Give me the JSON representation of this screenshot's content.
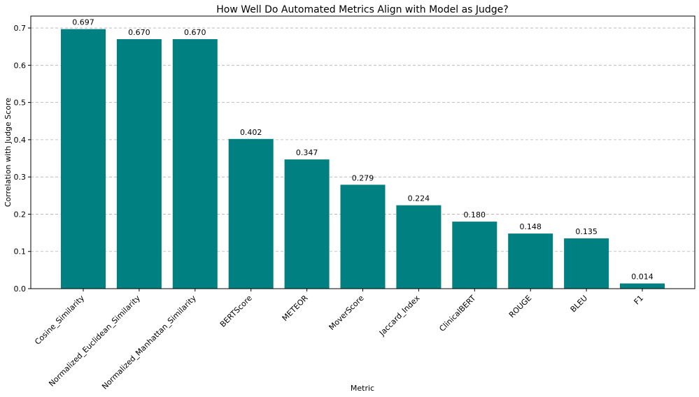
{
  "chart_data": {
    "type": "bar",
    "title": "How Well Do Automated Metrics Align with Model as Judge?",
    "xlabel": "Metric",
    "ylabel": "Correlation with Judge Score",
    "categories": [
      "Cosine_Similarity",
      "Normalized_Euclidean_Similarity",
      "Normalized_Manhattan_Similarity",
      "BERTScore",
      "METEOR",
      "MoverScore",
      "Jaccard_Index",
      "ClinicalBERT",
      "ROUGE",
      "BLEU",
      "F1"
    ],
    "values": [
      0.697,
      0.67,
      0.67,
      0.402,
      0.347,
      0.279,
      0.224,
      0.18,
      0.148,
      0.135,
      0.014
    ],
    "value_labels": [
      "0.697",
      "0.670",
      "0.670",
      "0.402",
      "0.347",
      "0.279",
      "0.224",
      "0.180",
      "0.148",
      "0.135",
      "0.014"
    ],
    "yticks": [
      0.0,
      0.1,
      0.2,
      0.3,
      0.4,
      0.5,
      0.6,
      0.7
    ],
    "ytick_labels": [
      "0.0",
      "0.1",
      "0.2",
      "0.3",
      "0.4",
      "0.5",
      "0.6",
      "0.7"
    ],
    "ylim": [
      0,
      0.732
    ],
    "grid": "y-dashed",
    "bar_color": "#008080",
    "grid_color": "#b0b0b0"
  }
}
